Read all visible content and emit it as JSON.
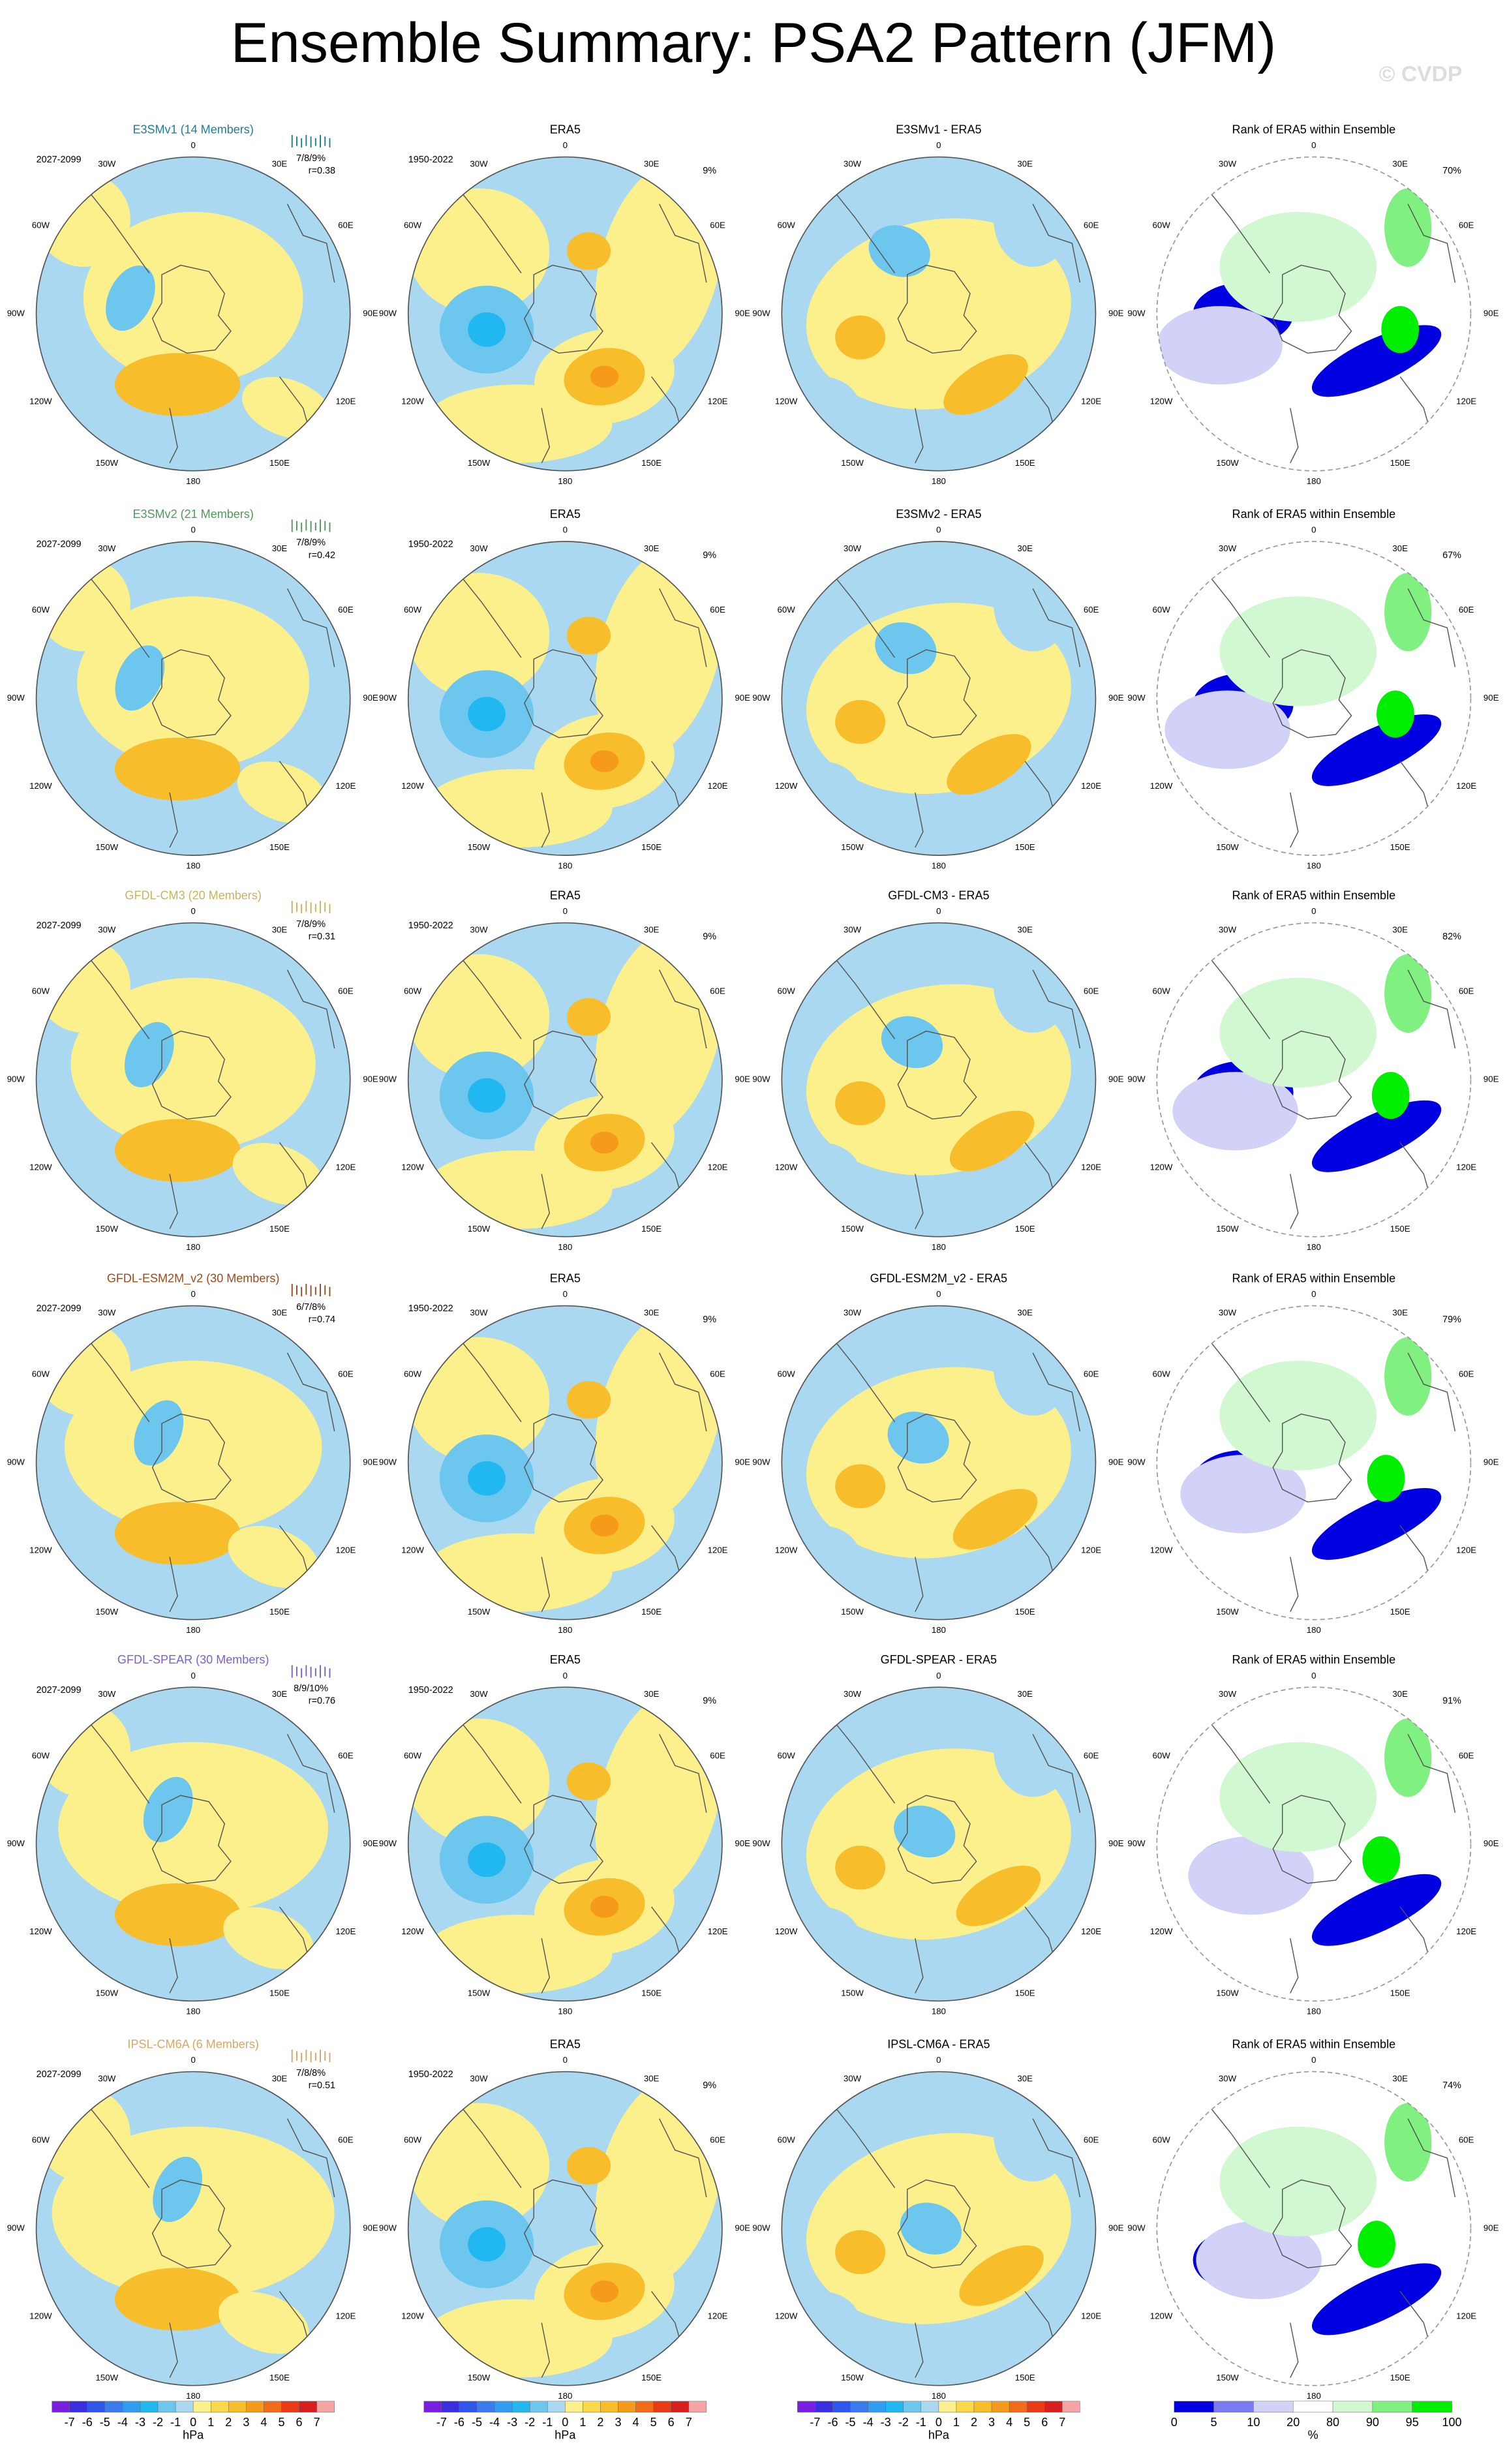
{
  "title": "Ensemble Summary: PSA2 Pattern (JFM)",
  "watermark": "© CVDP",
  "longitude_labels": [
    "0",
    "30E",
    "60E",
    "90E",
    "120E",
    "150E",
    "180",
    "150W",
    "120W",
    "90W",
    "60W",
    "30W"
  ],
  "rows": [
    {
      "model_title": "E3SMv1 (14 Members)",
      "model_color": "#1b7f9a",
      "model_period": "2027-2099",
      "model_stats": "7/8/9%",
      "model_r": "r=0.38",
      "obs_title": "ERA5",
      "obs_period": "1950-2022",
      "obs_pct": "9%",
      "diff_title": "E3SMv1 - ERA5",
      "rank_title": "Rank of ERA5 within Ensemble",
      "rank_pct": "70%"
    },
    {
      "model_title": "E3SMv2 (21 Members)",
      "model_color": "#4f9a5a",
      "model_period": "2027-2099",
      "model_stats": "7/8/9%",
      "model_r": "r=0.42",
      "obs_title": "ERA5",
      "obs_period": "1950-2022",
      "obs_pct": "9%",
      "diff_title": "E3SMv2 - ERA5",
      "rank_title": "Rank of ERA5 within Ensemble",
      "rank_pct": "67%"
    },
    {
      "model_title": "GFDL-CM3 (20 Members)",
      "model_color": "#c9b45a",
      "model_period": "2027-2099",
      "model_stats": "7/8/9%",
      "model_r": "r=0.31",
      "obs_title": "ERA5",
      "obs_period": "1950-2022",
      "obs_pct": "9%",
      "diff_title": "GFDL-CM3 - ERA5",
      "rank_title": "Rank of ERA5 within Ensemble",
      "rank_pct": "82%"
    },
    {
      "model_title": "GFDL-ESM2M_v2 (30 Members)",
      "model_color": "#9c4a1e",
      "model_period": "2027-2099",
      "model_stats": "6/7/8%",
      "model_r": "r=0.74",
      "obs_title": "ERA5",
      "obs_period": "1950-2022",
      "obs_pct": "9%",
      "diff_title": "GFDL-ESM2M_v2 - ERA5",
      "rank_title": "Rank of ERA5 within Ensemble",
      "rank_pct": "79%"
    },
    {
      "model_title": "GFDL-SPEAR (30 Members)",
      "model_color": "#7d5fd0",
      "model_period": "2027-2099",
      "model_stats": "8/9/10%",
      "model_r": "r=0.76",
      "obs_title": "ERA5",
      "obs_period": "1950-2022",
      "obs_pct": "9%",
      "diff_title": "GFDL-SPEAR - ERA5",
      "rank_title": "Rank of ERA5 within Ensemble",
      "rank_pct": "91%"
    },
    {
      "model_title": "IPSL-CM6A (6 Members)",
      "model_color": "#d9a66a",
      "model_period": "2027-2099",
      "model_stats": "7/8/8%",
      "model_r": "r=0.51",
      "obs_title": "ERA5",
      "obs_period": "1950-2022",
      "obs_pct": "9%",
      "diff_title": "IPSL-CM6A - ERA5",
      "rank_title": "Rank of ERA5 within Ensemble",
      "rank_pct": "74%"
    }
  ],
  "pattern_colorbar": {
    "labels": [
      -7,
      -6,
      -5,
      -4,
      -3,
      -2,
      -1,
      0,
      1,
      2,
      3,
      4,
      5,
      6,
      7
    ],
    "colors": [
      "#7a1fe0",
      "#3a2ee0",
      "#2f55ea",
      "#3a7cf0",
      "#2f9df2",
      "#21b8f2",
      "#6cc6ee",
      "#a9d8f0",
      "#fbf08c",
      "#f9d84a",
      "#f8bd2a",
      "#f69a1c",
      "#f26c18",
      "#e83b16",
      "#d81e1e",
      "#f5a3a3"
    ],
    "units": "hPa"
  },
  "rank_colorbar": {
    "labels": [
      0,
      5,
      10,
      20,
      80,
      90,
      95,
      100
    ],
    "colors": [
      "#0000e0",
      "#7a7af2",
      "#d2d2f8",
      "#ffffff",
      "#d2f8d2",
      "#80f080",
      "#00ee00"
    ],
    "units": "%"
  }
}
